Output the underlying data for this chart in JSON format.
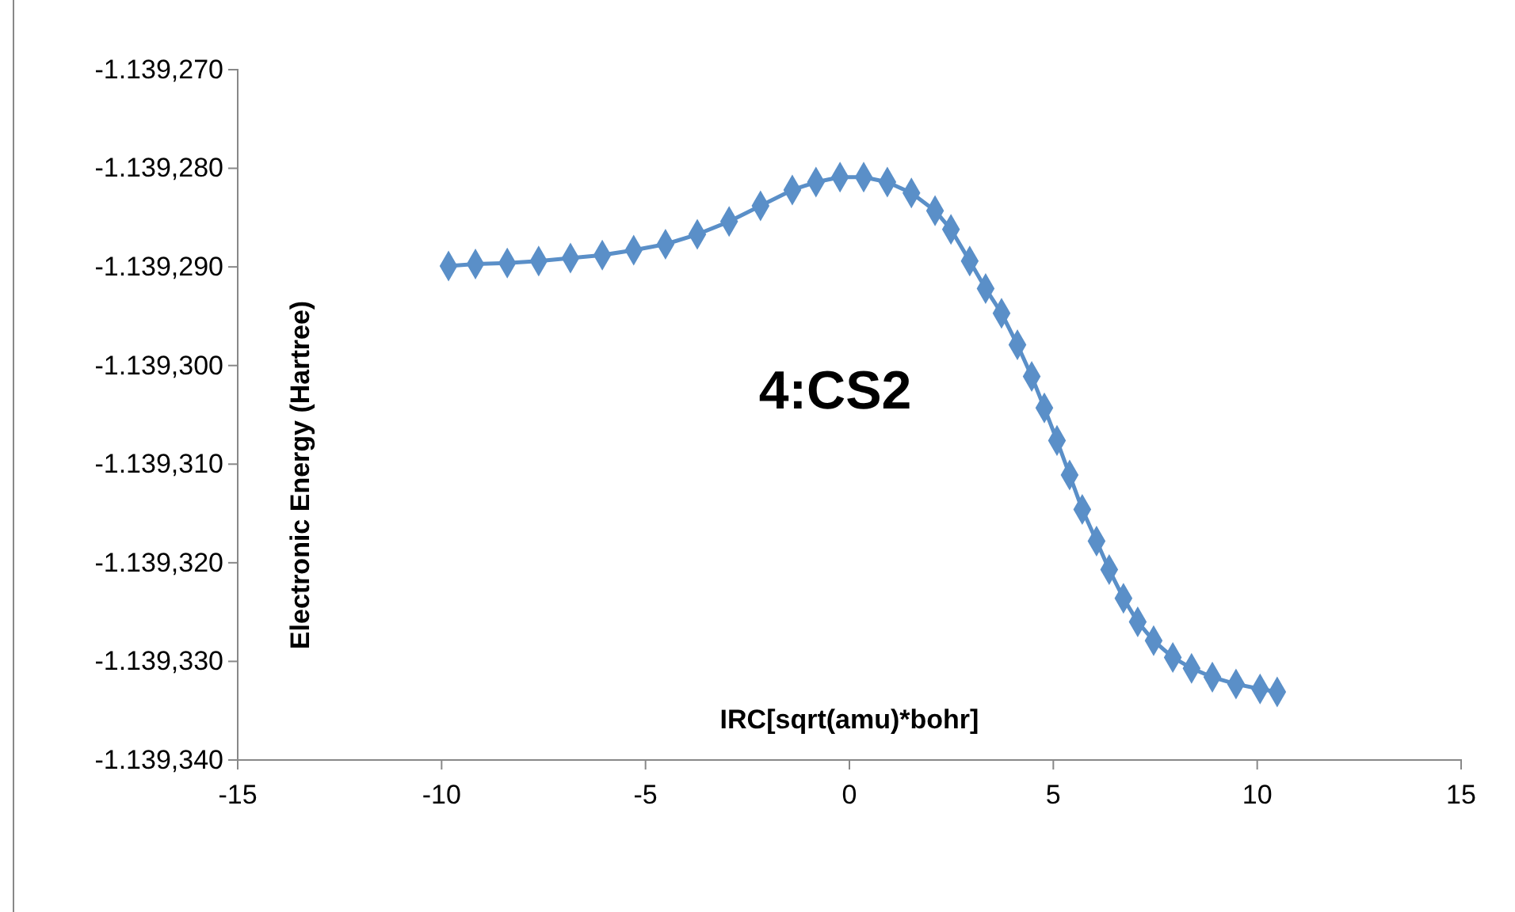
{
  "chart_data": {
    "type": "line",
    "xlabel": "IRC[sqrt(amu)*bohr]",
    "ylabel": "Electronic Energy (Hartree)",
    "annotations": [
      "4:CS2"
    ],
    "xlim": [
      -15,
      15
    ],
    "xticks": [
      -15,
      -10,
      -5,
      0,
      5,
      10,
      15
    ],
    "ylim": [
      -1139.34,
      -1139.27
    ],
    "yticks": [
      {
        "value": -1139.34,
        "label": "-1.139,340"
      },
      {
        "value": -1139.33,
        "label": "-1.139,330"
      },
      {
        "value": -1139.32,
        "label": "-1.139,320"
      },
      {
        "value": -1139.31,
        "label": "-1.139,310"
      },
      {
        "value": -1139.3,
        "label": "-1.139,300"
      },
      {
        "value": -1139.29,
        "label": "-1.139,290"
      },
      {
        "value": -1139.28,
        "label": "-1.139,280"
      },
      {
        "value": -1139.27,
        "label": "-1.139,270"
      }
    ],
    "grid": false,
    "marker": "diamond",
    "line_style": "solid",
    "series": [
      {
        "color": "#5a8fc8",
        "x": [
          -9.83,
          -9.17,
          -8.39,
          -7.62,
          -6.84,
          -6.06,
          -5.29,
          -4.51,
          -3.73,
          -2.95,
          -2.18,
          -1.4,
          -0.82,
          -0.23,
          0.35,
          0.93,
          1.52,
          2.1,
          2.49,
          2.95,
          3.34,
          3.73,
          4.12,
          4.47,
          4.78,
          5.09,
          5.4,
          5.71,
          6.06,
          6.37,
          6.72,
          7.07,
          7.46,
          7.93,
          8.39,
          8.9,
          9.48,
          10.07,
          10.49
        ],
        "values": [
          -1139.2899,
          -1139.2897,
          -1139.2896,
          -1139.2894,
          -1139.2891,
          -1139.2888,
          -1139.2883,
          -1139.2877,
          -1139.2867,
          -1139.2854,
          -1139.2838,
          -1139.2822,
          -1139.2814,
          -1139.2809,
          -1139.2809,
          -1139.2814,
          -1139.2825,
          -1139.2843,
          -1139.2862,
          -1139.2894,
          -1139.2922,
          -1139.2947,
          -1139.2979,
          -1139.3011,
          -1139.3043,
          -1139.3076,
          -1139.3111,
          -1139.3146,
          -1139.3178,
          -1139.3207,
          -1139.3236,
          -1139.326,
          -1139.3279,
          -1139.3296,
          -1139.3307,
          -1139.3316,
          -1139.3323,
          -1139.3328,
          -1139.3331
        ]
      }
    ]
  }
}
